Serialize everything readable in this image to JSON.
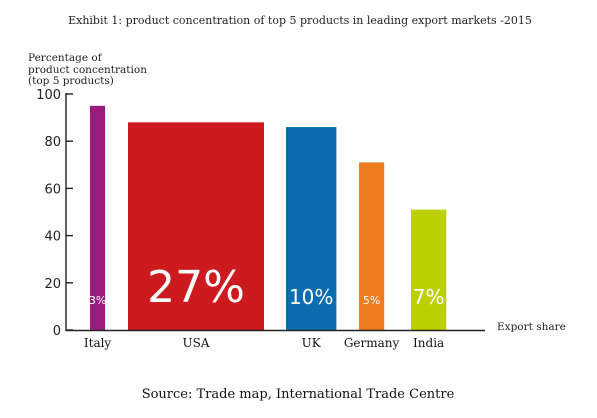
{
  "chart_data": {
    "type": "bar",
    "title": "Exhibit 1: product concentration of top 5 products in leading export markets -2015",
    "ylabel_lines": [
      "Percentage of",
      "product concentration",
      "(top 5 products)"
    ],
    "xlabel": "Export share",
    "ylim": [
      0,
      100
    ],
    "yticks": [
      0,
      20,
      40,
      60,
      80,
      100
    ],
    "grid": false,
    "categories": [
      "Italy",
      "USA",
      "UK",
      "Germany",
      "India"
    ],
    "values": [
      95,
      88,
      86,
      71,
      51
    ],
    "export_share_labels": [
      "3%",
      "27%",
      "10%",
      "5%",
      "7%"
    ],
    "export_share_values": [
      3,
      27,
      10,
      5,
      7
    ],
    "colors": [
      "#9b1c7e",
      "#cc1a1e",
      "#0a6db0",
      "#ee7d22",
      "#bccf00"
    ]
  },
  "source": "Source: Trade map, International Trade Centre"
}
